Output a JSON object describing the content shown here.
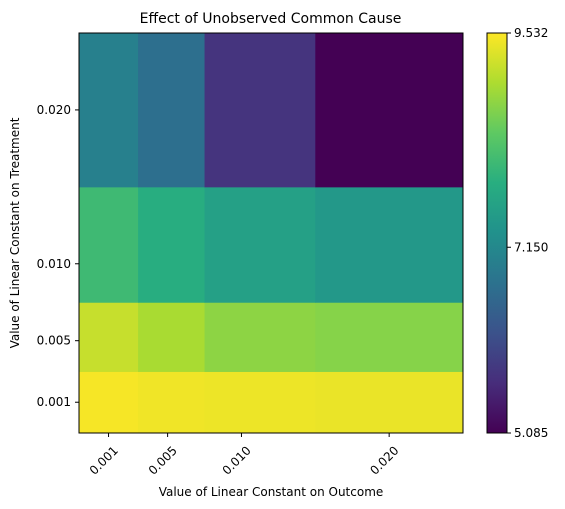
{
  "chart_data": {
    "type": "heatmap",
    "title": "Effect of Unobserved Common Cause",
    "xlabel": "Value of Linear Constant on Outcome",
    "ylabel": "Value of Linear Constant on Treatment",
    "x": [
      0.001,
      0.005,
      0.01,
      0.02
    ],
    "y": [
      0.001,
      0.005,
      0.01,
      0.02
    ],
    "x_tick_labels": [
      "0.001",
      "0.005",
      "0.010",
      "0.020"
    ],
    "y_tick_labels": [
      "0.001",
      "0.005",
      "0.010",
      "0.020"
    ],
    "values": [
      [
        9.48,
        9.44,
        9.42,
        9.4
      ],
      [
        9.15,
        8.95,
        8.75,
        8.7
      ],
      [
        8.1,
        7.85,
        7.6,
        7.45
      ],
      [
        7.0,
        6.7,
        5.75,
        5.09
      ]
    ],
    "colorbar": {
      "min": 5.085,
      "max": 9.532,
      "tick_labels": [
        "5.085",
        "7.150",
        "9.532"
      ],
      "colormap": "viridis"
    },
    "grid": false
  }
}
